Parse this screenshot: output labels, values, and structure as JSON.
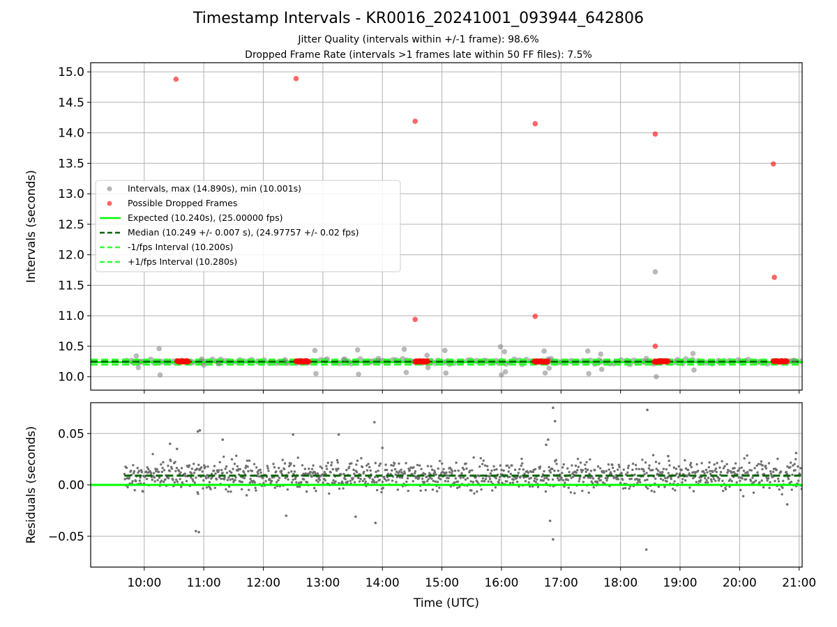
{
  "chart_data": [
    {
      "type": "scatter",
      "title": "Timestamp Intervals - KR0016_20241001_093944_642806",
      "subtitle_lines": [
        "Jitter Quality (intervals within +/-1 frame): 98.6%",
        "Dropped Frame Rate (intervals >1 frames late within 50 FF files): 7.5%"
      ],
      "xlabel": "",
      "ylabel": "Intervals (seconds)",
      "x_range": [
        "09:06",
        "21:03"
      ],
      "ylim": [
        9.78,
        15.15
      ],
      "yticks": [
        10.0,
        10.5,
        11.0,
        11.5,
        12.0,
        12.5,
        13.0,
        13.5,
        14.0,
        14.5,
        15.0
      ],
      "ytick_labels": [
        "10.0",
        "10.5",
        "11.0",
        "11.5",
        "12.0",
        "12.5",
        "13.0",
        "13.5",
        "14.0",
        "14.5",
        "15.0"
      ],
      "xticks": [
        "10:00",
        "11:00",
        "12:00",
        "13:00",
        "14:00",
        "15:00",
        "16:00",
        "17:00",
        "18:00",
        "19:00",
        "20:00",
        "21:00"
      ],
      "grid": true,
      "legend_position": "center-left",
      "series": [
        {
          "name": "Intervals, max (14.890s), min (10.001s)",
          "kind": "scatter",
          "color": "#808080",
          "points": [
            [
              "09:52",
              10.34
            ],
            [
              "09:54",
              10.15
            ],
            [
              "10:15",
              10.46
            ],
            [
              "10:16",
              10.03
            ],
            [
              "10:58",
              10.29
            ],
            [
              "11:00",
              10.19
            ],
            [
              "11:15",
              10.21
            ],
            [
              "12:22",
              10.28
            ],
            [
              "12:52",
              10.43
            ],
            [
              "12:53",
              10.05
            ],
            [
              "13:22",
              10.29
            ],
            [
              "13:35",
              10.44
            ],
            [
              "13:36",
              10.04
            ],
            [
              "13:56",
              10.3
            ],
            [
              "14:22",
              10.45
            ],
            [
              "14:24",
              10.07
            ],
            [
              "14:45",
              10.35
            ],
            [
              "14:46",
              10.15
            ],
            [
              "15:03",
              10.43
            ],
            [
              "15:04",
              10.06
            ],
            [
              "15:59",
              10.49
            ],
            [
              "16:00",
              10.03
            ],
            [
              "16:03",
              10.41
            ],
            [
              "16:04",
              10.08
            ],
            [
              "16:43",
              10.42
            ],
            [
              "16:44",
              10.06
            ],
            [
              "16:47",
              10.29
            ],
            [
              "16:48",
              10.14
            ],
            [
              "16:50",
              10.3
            ],
            [
              "17:27",
              10.42
            ],
            [
              "17:28",
              10.05
            ],
            [
              "17:40",
              10.37
            ],
            [
              "17:41",
              10.12
            ],
            [
              "18:26",
              10.3
            ],
            [
              "18:35",
              11.72
            ],
            [
              "18:36",
              10.0
            ],
            [
              "19:13",
              10.38
            ],
            [
              "19:14",
              10.11
            ],
            [
              "20:55",
              10.27
            ]
          ],
          "band": {
            "from": "09:40",
            "to": "21:03",
            "median": 10.249,
            "spread": 0.03
          }
        },
        {
          "name": "Possible Dropped Frames",
          "kind": "scatter",
          "color": "#ff0000",
          "points": [
            [
              "10:32",
              14.88
            ],
            [
              "12:33",
              14.89
            ],
            [
              "14:33",
              14.19
            ],
            [
              "14:33",
              10.94
            ],
            [
              "16:34",
              14.15
            ],
            [
              "16:34",
              10.99
            ],
            [
              "18:35",
              13.98
            ],
            [
              "18:35",
              10.5
            ],
            [
              "20:34",
              13.49
            ],
            [
              "20:35",
              11.63
            ]
          ],
          "clusters": [
            {
              "from": "10:33",
              "to": "10:45",
              "y": 10.25
            },
            {
              "from": "12:33",
              "to": "12:46",
              "y": 10.25
            },
            {
              "from": "14:33",
              "to": "14:46",
              "y": 10.25
            },
            {
              "from": "16:33",
              "to": "16:47",
              "y": 10.25
            },
            {
              "from": "18:34",
              "to": "18:48",
              "y": 10.25
            },
            {
              "from": "20:34",
              "to": "20:48",
              "y": 10.25
            }
          ]
        },
        {
          "name": "Expected (10.240s), (25.00000 fps)",
          "kind": "hline",
          "value": 10.24,
          "color": "#00ff00",
          "style": "solid"
        },
        {
          "name": "Median (10.249 +/- 0.007 s), (24.97757 +/- 0.02 fps)",
          "kind": "hline",
          "value": 10.249,
          "color": "#006400",
          "style": "dashed"
        },
        {
          "name": "-1/fps Interval (10.200s)",
          "kind": "hline",
          "value": 10.2,
          "color": "#32ff32",
          "style": "dashed"
        },
        {
          "name": "+1/fps Interval (10.280s)",
          "kind": "hline",
          "value": 10.28,
          "color": "#32ff32",
          "style": "dashed"
        }
      ]
    },
    {
      "type": "scatter",
      "title": "",
      "xlabel": "Time (UTC)",
      "ylabel": "Residuals (seconds)",
      "x_range": [
        "09:06",
        "21:03"
      ],
      "ylim": [
        -0.08,
        0.08
      ],
      "yticks": [
        -0.05,
        0.0,
        0.05
      ],
      "ytick_labels": [
        "−0.05",
        "0.00",
        "0.05"
      ],
      "xticks": [
        "10:00",
        "11:00",
        "12:00",
        "13:00",
        "14:00",
        "15:00",
        "16:00",
        "17:00",
        "18:00",
        "19:00",
        "20:00",
        "21:00"
      ],
      "grid": true,
      "series": [
        {
          "kind": "scatter",
          "color": "#707070",
          "outliers": [
            [
              "10:26",
              0.04
            ],
            [
              "10:33",
              0.035
            ],
            [
              "10:54",
              0.052
            ],
            [
              "10:56",
              0.053
            ],
            [
              "10:52",
              -0.045
            ],
            [
              "10:55",
              -0.046
            ],
            [
              "11:19",
              0.044
            ],
            [
              "12:30",
              0.049
            ],
            [
              "12:23",
              -0.03
            ],
            [
              "13:16",
              0.049
            ],
            [
              "13:33",
              -0.031
            ],
            [
              "13:52",
              0.061
            ],
            [
              "13:53",
              -0.037
            ],
            [
              "14:00",
              0.036
            ],
            [
              "16:45",
              0.039
            ],
            [
              "16:47",
              0.044
            ],
            [
              "16:52",
              0.075
            ],
            [
              "16:54",
              0.062
            ],
            [
              "16:49",
              -0.035
            ],
            [
              "16:52",
              -0.053
            ],
            [
              "18:27",
              0.073
            ],
            [
              "18:26",
              -0.063
            ],
            [
              "18:48",
              0.028
            ],
            [
              "20:23",
              0.019
            ],
            [
              "20:48",
              -0.019
            ],
            [
              "20:57",
              0.031
            ]
          ],
          "band": {
            "from": "09:40",
            "to": "21:03",
            "center": 0.009,
            "spread": 0.012
          }
        },
        {
          "kind": "hline",
          "value": 0.0,
          "color": "#00ff00",
          "style": "solid"
        },
        {
          "kind": "hline",
          "value": 0.009,
          "color": "#006400",
          "style": "dashed",
          "from": "09:40"
        }
      ]
    }
  ]
}
